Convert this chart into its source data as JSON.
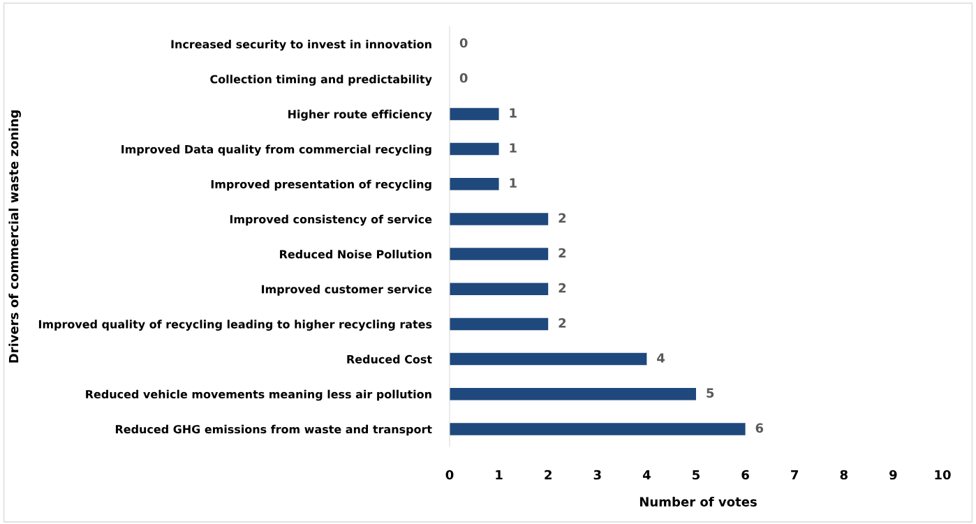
{
  "chart_data": {
    "type": "bar",
    "orientation": "horizontal",
    "xlabel": "Number of votes",
    "ylabel": "Drivers of commercial waste zoning",
    "categories": [
      "Increased security to invest in innovation",
      "Collection timing and predictability",
      "Higher route efficiency",
      "Improved Data quality from commercial recycling",
      "Improved presentation of recycling",
      "Improved consistency of service",
      "Reduced Noise Pollution",
      "Improved customer service",
      "Improved quality of recycling leading to higher recycling rates",
      "Reduced Cost",
      "Reduced vehicle movements meaning less air pollution",
      "Reduced GHG emissions from waste and transport"
    ],
    "values": [
      0,
      0,
      1,
      1,
      1,
      2,
      2,
      2,
      2,
      4,
      5,
      6
    ],
    "color": "#1f497d",
    "xlim": [
      0,
      10
    ],
    "xticks": [
      0,
      1,
      2,
      3,
      4,
      5,
      6,
      7,
      8,
      9,
      10
    ],
    "data_labels": true,
    "grid": false
  }
}
